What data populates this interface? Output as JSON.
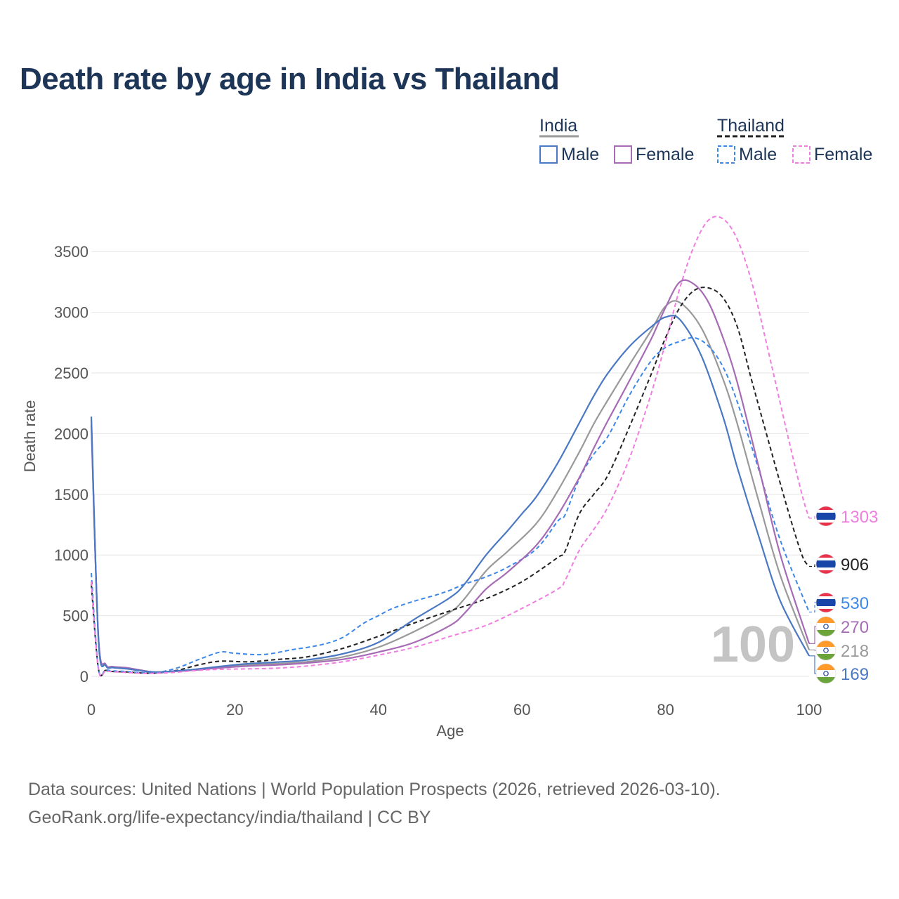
{
  "chart_data": {
    "type": "line",
    "title": "Death rate by age in India vs Thailand",
    "xlabel": "Age",
    "ylabel": "Death rate",
    "xlim": [
      0,
      100
    ],
    "ylim": [
      0,
      3500
    ],
    "xticks": [
      0,
      20,
      40,
      60,
      80,
      100
    ],
    "yticks": [
      0,
      500,
      1000,
      1500,
      2000,
      2500,
      3000,
      3500
    ],
    "grid": true,
    "watermark": "100",
    "legend": {
      "groups": [
        {
          "country": "India",
          "style": "solid",
          "entries": [
            "Male",
            "Female"
          ]
        },
        {
          "country": "Thailand",
          "style": "dashed",
          "entries": [
            "Male",
            "Female"
          ]
        }
      ]
    },
    "series": [
      {
        "name": "India Male",
        "country": "India",
        "sex": "Male",
        "color": "#4a78c2",
        "dash": false,
        "end_label": "169",
        "x": [
          0,
          1,
          2,
          3,
          5,
          7,
          9,
          12,
          15,
          18,
          22,
          26,
          30,
          35,
          40,
          45,
          50,
          52,
          55,
          58,
          60,
          62,
          65,
          68,
          70,
          72,
          75,
          78,
          80,
          82,
          85,
          88,
          90,
          93,
          96,
          100
        ],
        "y": [
          2140,
          300,
          90,
          72,
          62,
          45,
          35,
          45,
          62,
          82,
          105,
          118,
          135,
          185,
          280,
          470,
          650,
          760,
          1000,
          1200,
          1340,
          1480,
          1760,
          2090,
          2310,
          2500,
          2720,
          2880,
          2960,
          2940,
          2640,
          2140,
          1720,
          1150,
          620,
          169
        ]
      },
      {
        "name": "India Female",
        "country": "India",
        "sex": "Female",
        "color": "#a66bb5",
        "dash": false,
        "end_label": "270",
        "x": [
          0,
          1,
          2,
          3,
          5,
          7,
          9,
          12,
          15,
          18,
          22,
          26,
          30,
          35,
          40,
          45,
          50,
          52,
          55,
          58,
          62,
          65,
          68,
          70,
          72,
          75,
          78,
          80,
          82,
          84,
          86,
          88,
          90,
          93,
          96,
          100
        ],
        "y": [
          2070,
          320,
          100,
          80,
          70,
          50,
          35,
          42,
          55,
          70,
          85,
          95,
          110,
          140,
          200,
          280,
          420,
          520,
          720,
          860,
          1080,
          1330,
          1640,
          1880,
          2110,
          2440,
          2780,
          3040,
          3250,
          3230,
          3080,
          2790,
          2420,
          1720,
          1000,
          270
        ]
      },
      {
        "name": "India Total",
        "country": "India",
        "sex": "Total",
        "color": "#999999",
        "dash": false,
        "end_label": "218",
        "x": [
          0,
          1,
          2,
          3,
          5,
          7,
          9,
          12,
          15,
          18,
          22,
          26,
          30,
          35,
          40,
          45,
          50,
          52,
          55,
          58,
          62,
          65,
          68,
          70,
          72,
          75,
          78,
          80,
          82,
          85,
          88,
          90,
          93,
          96,
          100
        ],
        "y": [
          2110,
          310,
          95,
          76,
          66,
          47,
          35,
          43,
          58,
          75,
          95,
          105,
          120,
          160,
          240,
          370,
          530,
          640,
          870,
          1030,
          1260,
          1530,
          1850,
          2080,
          2280,
          2570,
          2850,
          3050,
          3080,
          2870,
          2450,
          2080,
          1440,
          830,
          218
        ]
      },
      {
        "name": "Thailand Male",
        "country": "Thailand",
        "sex": "Male",
        "color": "#3d87e8",
        "dash": true,
        "end_label": "530",
        "x": [
          0,
          1,
          2,
          3,
          5,
          7,
          9,
          12,
          15,
          18,
          20,
          24,
          28,
          32,
          35,
          38,
          40,
          42,
          45,
          48,
          50,
          52,
          55,
          58,
          62,
          65,
          66,
          68,
          70,
          72,
          75,
          78,
          80,
          82,
          84,
          86,
          88,
          90,
          93,
          96,
          100
        ],
        "y": [
          850,
          65,
          55,
          45,
          40,
          30,
          30,
          70,
          140,
          200,
          190,
          180,
          220,
          260,
          320,
          440,
          500,
          560,
          620,
          670,
          710,
          760,
          820,
          900,
          1050,
          1280,
          1330,
          1630,
          1830,
          1980,
          2320,
          2600,
          2710,
          2760,
          2790,
          2720,
          2550,
          2260,
          1700,
          1120,
          530
        ]
      },
      {
        "name": "Thailand Female",
        "country": "Thailand",
        "sex": "Female",
        "color": "#f07de0",
        "dash": true,
        "end_label": "1303",
        "x": [
          0,
          1,
          2,
          3,
          5,
          7,
          9,
          12,
          15,
          18,
          22,
          26,
          30,
          35,
          40,
          45,
          50,
          55,
          60,
          65,
          66,
          68,
          70,
          72,
          75,
          78,
          80,
          82,
          84,
          86,
          88,
          90,
          92,
          94,
          97,
          99,
          100
        ],
        "y": [
          780,
          55,
          45,
          38,
          32,
          25,
          25,
          35,
          50,
          58,
          62,
          68,
          85,
          120,
          175,
          240,
          330,
          420,
          560,
          720,
          790,
          1040,
          1210,
          1400,
          1800,
          2330,
          2750,
          3200,
          3550,
          3760,
          3770,
          3600,
          3250,
          2760,
          1990,
          1500,
          1303
        ]
      },
      {
        "name": "Thailand Total",
        "country": "Thailand",
        "sex": "Total",
        "color": "#222222",
        "dash": true,
        "end_label": "906",
        "x": [
          0,
          1,
          2,
          3,
          5,
          7,
          9,
          12,
          15,
          18,
          22,
          26,
          30,
          35,
          40,
          45,
          50,
          55,
          60,
          65,
          66,
          68,
          70,
          72,
          75,
          78,
          80,
          82,
          84,
          86,
          88,
          90,
          92,
          94,
          97,
          99,
          100
        ],
        "y": [
          760,
          60,
          50,
          40,
          36,
          28,
          27,
          50,
          95,
          125,
          120,
          140,
          160,
          230,
          330,
          440,
          540,
          640,
          780,
          980,
          1030,
          1340,
          1500,
          1660,
          2060,
          2490,
          2790,
          3040,
          3180,
          3200,
          3120,
          2880,
          2440,
          2010,
          1380,
          1000,
          906
        ]
      }
    ],
    "end_markers": [
      {
        "label": "1303",
        "country": "Thailand",
        "color": "#f07de0"
      },
      {
        "label": "906",
        "country": "Thailand",
        "color": "#222222"
      },
      {
        "label": "530",
        "country": "Thailand",
        "color": "#3d87e8"
      },
      {
        "label": "270",
        "country": "India",
        "color": "#a66bb5"
      },
      {
        "label": "218",
        "country": "India",
        "color": "#999999"
      },
      {
        "label": "169",
        "country": "India",
        "color": "#4a78c2"
      }
    ]
  },
  "source": {
    "line1": "Data sources: United Nations | World Population Prospects (2026, retrieved 2026-03-10).",
    "line2": "GeoRank.org/life-expectancy/india/thailand | CC BY"
  }
}
